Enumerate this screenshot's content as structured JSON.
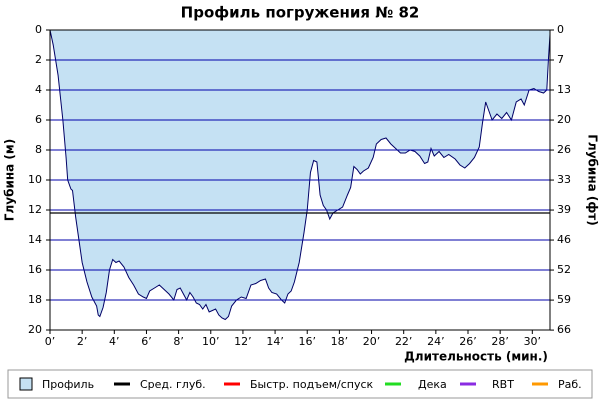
{
  "chart_data": {
    "type": "area",
    "title": "Профиль погружения № 82",
    "x_label": "Длительность (мин.)",
    "y_label": "Глубина (м)",
    "y2_label": "Глубина (фт)",
    "invert_y": true,
    "grid": true,
    "xlim": [
      0,
      31.1
    ],
    "ylim": [
      0,
      20
    ],
    "y2lim": [
      0,
      65.6
    ],
    "xticks": [
      {
        "value": 0,
        "label": "0’"
      },
      {
        "value": 2,
        "label": "2’"
      },
      {
        "value": 4,
        "label": "4’"
      },
      {
        "value": 6,
        "label": "6’"
      },
      {
        "value": 8,
        "label": "8’"
      },
      {
        "value": 10,
        "label": "10’"
      },
      {
        "value": 12,
        "label": "12’"
      },
      {
        "value": 14,
        "label": "14’"
      },
      {
        "value": 16,
        "label": "16’"
      },
      {
        "value": 18,
        "label": "18’"
      },
      {
        "value": 20,
        "label": "20’"
      },
      {
        "value": 22,
        "label": "22’"
      },
      {
        "value": 24,
        "label": "24’"
      },
      {
        "value": 26,
        "label": "26’"
      },
      {
        "value": 28,
        "label": "28’"
      },
      {
        "value": 30,
        "label": "30’"
      }
    ],
    "yticks": [
      0,
      2,
      4,
      6,
      8,
      10,
      12,
      14,
      16,
      18,
      20
    ],
    "y2ticks": [
      0,
      {
        "value": 6.56,
        "label": "7"
      },
      {
        "value": 13.12,
        "label": "13"
      },
      {
        "value": 19.69,
        "label": "20"
      },
      {
        "value": 26.25,
        "label": "26"
      },
      {
        "value": 32.81,
        "label": "33"
      },
      {
        "value": 39.37,
        "label": "39"
      },
      {
        "value": 45.93,
        "label": "46"
      },
      {
        "value": 52.49,
        "label": "52"
      },
      {
        "value": 59.06,
        "label": "59"
      },
      {
        "value": 65.62,
        "label": "66"
      }
    ],
    "series": [
      {
        "name": "Профиль",
        "color": "#c5e1f3",
        "line_color": "#000066",
        "x": [
          0,
          0.2,
          0.5,
          0.8,
          1.0,
          1.1,
          1.3,
          1.4,
          1.6,
          1.8,
          2.0,
          2.3,
          2.6,
          2.9,
          3.0,
          3.1,
          3.3,
          3.5,
          3.7,
          3.9,
          4.1,
          4.3,
          4.6,
          4.9,
          5.2,
          5.5,
          5.8,
          6.0,
          6.2,
          6.5,
          6.8,
          7.1,
          7.4,
          7.7,
          7.9,
          8.1,
          8.3,
          8.5,
          8.7,
          8.9,
          9.1,
          9.3,
          9.5,
          9.7,
          9.9,
          10.1,
          10.3,
          10.5,
          10.7,
          10.9,
          11.1,
          11.3,
          11.6,
          11.9,
          12.2,
          12.5,
          12.8,
          13.1,
          13.4,
          13.6,
          13.8,
          14.1,
          14.4,
          14.6,
          14.8,
          15.0,
          15.2,
          15.5,
          15.8,
          16.0,
          16.2,
          16.4,
          16.6,
          16.8,
          17.0,
          17.2,
          17.4,
          17.6,
          17.9,
          18.2,
          18.5,
          18.7,
          18.9,
          19.1,
          19.3,
          19.5,
          19.8,
          20.1,
          20.3,
          20.6,
          20.9,
          21.2,
          21.5,
          21.8,
          22.1,
          22.4,
          22.7,
          23.0,
          23.3,
          23.5,
          23.7,
          23.9,
          24.2,
          24.5,
          24.8,
          25.2,
          25.5,
          25.8,
          26.1,
          26.4,
          26.7,
          26.9,
          27.1,
          27.3,
          27.5,
          27.8,
          28.1,
          28.4,
          28.7,
          29.0,
          29.3,
          29.5,
          29.8,
          30.1,
          30.4,
          30.7,
          30.9,
          31.0,
          31.1
        ],
        "values": [
          0,
          1,
          3,
          6,
          8.5,
          10,
          10.6,
          10.7,
          12.5,
          14,
          15.5,
          16.8,
          17.8,
          18.4,
          19.0,
          19.1,
          18.5,
          17.5,
          16,
          15.3,
          15.5,
          15.4,
          15.8,
          16.5,
          17,
          17.6,
          17.8,
          17.9,
          17.4,
          17.2,
          17,
          17.3,
          17.6,
          18,
          17.3,
          17.2,
          17.6,
          18.0,
          17.5,
          17.8,
          18.2,
          18.3,
          18.6,
          18.3,
          18.8,
          18.7,
          18.6,
          19,
          19.2,
          19.3,
          19.1,
          18.4,
          18,
          17.8,
          17.9,
          17.0,
          16.9,
          16.7,
          16.6,
          17.2,
          17.5,
          17.6,
          18.0,
          18.2,
          17.6,
          17.4,
          16.8,
          15.5,
          13.5,
          12,
          9.5,
          8.7,
          8.8,
          11,
          11.7,
          12.0,
          12.6,
          12.2,
          12,
          11.8,
          11.0,
          10.5,
          9.1,
          9.3,
          9.6,
          9.4,
          9.2,
          8.5,
          7.6,
          7.3,
          7.2,
          7.6,
          7.9,
          8.2,
          8.2,
          8.0,
          8.1,
          8.4,
          8.9,
          8.8,
          7.9,
          8.4,
          8.1,
          8.5,
          8.3,
          8.6,
          9.0,
          9.2,
          8.9,
          8.5,
          7.8,
          6.2,
          4.8,
          5.4,
          6.0,
          5.6,
          5.9,
          5.5,
          6.0,
          4.8,
          4.6,
          5.0,
          4.0,
          3.9,
          4.1,
          4.2,
          4.0,
          2.0,
          0.3
        ]
      }
    ],
    "lines": [
      {
        "name": "Сред. глуб.",
        "color": "#000000",
        "value": 12.2
      },
      {
        "name": "Быстр. подъем/спуск",
        "color": "#ff0000"
      },
      {
        "name": "Дека",
        "color": "#22dd22"
      },
      {
        "name": "RBT",
        "color": "#8a2be2"
      },
      {
        "name": "Раб.",
        "color": "#ff9900"
      }
    ]
  }
}
